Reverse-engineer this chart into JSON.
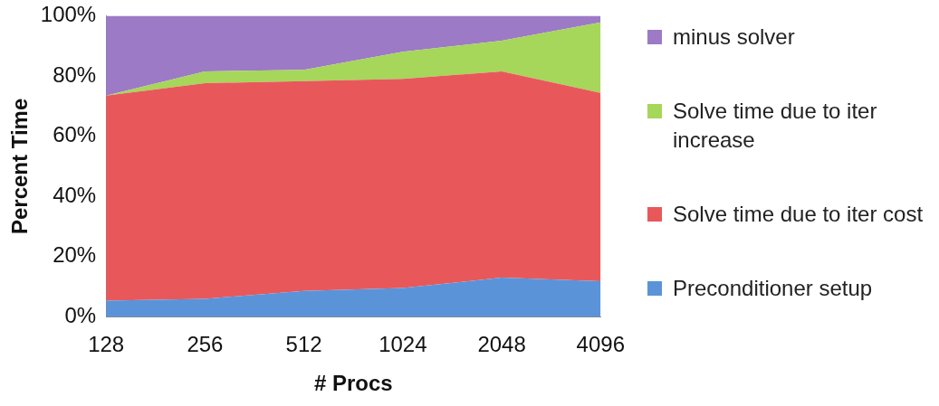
{
  "chart_data": {
    "type": "area",
    "stacked": true,
    "xlabel": "# Procs",
    "ylabel": "Percent Time",
    "categories": [
      "128",
      "256",
      "512",
      "1024",
      "2048",
      "4096"
    ],
    "ylim": [
      0,
      100
    ],
    "yticks": [
      {
        "value": 0,
        "label": "0%"
      },
      {
        "value": 20,
        "label": "20%"
      },
      {
        "value": 40,
        "label": "40%"
      },
      {
        "value": 60,
        "label": "60%"
      },
      {
        "value": 80,
        "label": "80%"
      },
      {
        "value": 100,
        "label": "100%"
      }
    ],
    "grid": false,
    "legend": "right",
    "series": [
      {
        "name": "Preconditioner setup",
        "color": "#5b93d9",
        "values": [
          5.4,
          6,
          8.6,
          9.6,
          13,
          11.8
        ]
      },
      {
        "name": "Solve time due to iter cost",
        "color": "#e8585a",
        "values": [
          68.1,
          71.6,
          69.7,
          69.4,
          68.5,
          62.6
        ]
      },
      {
        "name": "Solve time due to iter increase",
        "color": "#a6d65a",
        "values": [
          0,
          3.9,
          3.7,
          9,
          10.2,
          23.4
        ]
      },
      {
        "name": "minus solver",
        "color": "#9c7ac6",
        "values": [
          26.5,
          18.5,
          18,
          12,
          8.3,
          2.2
        ]
      }
    ]
  }
}
